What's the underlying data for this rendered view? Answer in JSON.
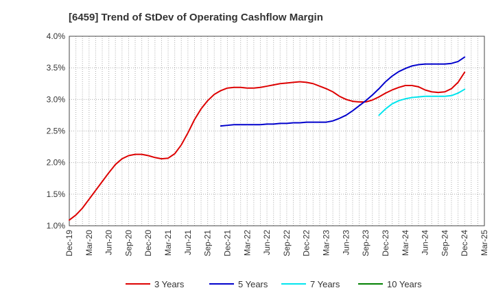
{
  "chart_data": {
    "type": "line",
    "title": "[6459]  Trend of StDev of Operating Cashflow Margin",
    "xlabel": "",
    "ylabel": "",
    "y_unit": "%",
    "ylim": [
      1.0,
      4.0
    ],
    "y_ticks": [
      1.0,
      1.5,
      2.0,
      2.5,
      3.0,
      3.5,
      4.0
    ],
    "y_tick_labels": [
      "1.0%",
      "1.5%",
      "2.0%",
      "2.5%",
      "3.0%",
      "3.5%",
      "4.0%"
    ],
    "x_ticks": [
      "Dec-19",
      "Mar-20",
      "Jun-20",
      "Sep-20",
      "Dec-20",
      "Mar-21",
      "Jun-21",
      "Sep-21",
      "Dec-21",
      "Mar-22",
      "Jun-22",
      "Sep-22",
      "Dec-22",
      "Mar-23",
      "Jun-23",
      "Sep-23",
      "Dec-23",
      "Mar-24",
      "Jun-24",
      "Sep-24",
      "Dec-24",
      "Mar-25"
    ],
    "grid": true,
    "legend_position": "bottom",
    "series": [
      {
        "name": "3 Years",
        "color": "#dd0000",
        "points": [
          [
            "Dec-19",
            1.09
          ],
          [
            "Jan-20",
            1.17
          ],
          [
            "Feb-20",
            1.28
          ],
          [
            "Mar-20",
            1.42
          ],
          [
            "Apr-20",
            1.56
          ],
          [
            "May-20",
            1.7
          ],
          [
            "Jun-20",
            1.84
          ],
          [
            "Jul-20",
            1.97
          ],
          [
            "Aug-20",
            2.06
          ],
          [
            "Sep-20",
            2.11
          ],
          [
            "Oct-20",
            2.13
          ],
          [
            "Nov-20",
            2.13
          ],
          [
            "Dec-20",
            2.11
          ],
          [
            "Jan-21",
            2.08
          ],
          [
            "Feb-21",
            2.06
          ],
          [
            "Mar-21",
            2.07
          ],
          [
            "Apr-21",
            2.14
          ],
          [
            "May-21",
            2.28
          ],
          [
            "Jun-21",
            2.47
          ],
          [
            "Jul-21",
            2.68
          ],
          [
            "Aug-21",
            2.85
          ],
          [
            "Sep-21",
            2.98
          ],
          [
            "Oct-21",
            3.08
          ],
          [
            "Nov-21",
            3.14
          ],
          [
            "Dec-21",
            3.18
          ],
          [
            "Jan-22",
            3.19
          ],
          [
            "Feb-22",
            3.19
          ],
          [
            "Mar-22",
            3.18
          ],
          [
            "Apr-22",
            3.18
          ],
          [
            "May-22",
            3.19
          ],
          [
            "Jun-22",
            3.21
          ],
          [
            "Jul-22",
            3.23
          ],
          [
            "Aug-22",
            3.25
          ],
          [
            "Sep-22",
            3.26
          ],
          [
            "Oct-22",
            3.27
          ],
          [
            "Nov-22",
            3.28
          ],
          [
            "Dec-22",
            3.27
          ],
          [
            "Jan-23",
            3.25
          ],
          [
            "Feb-23",
            3.21
          ],
          [
            "Mar-23",
            3.17
          ],
          [
            "Apr-23",
            3.12
          ],
          [
            "May-23",
            3.05
          ],
          [
            "Jun-23",
            3.0
          ],
          [
            "Jul-23",
            2.97
          ],
          [
            "Aug-23",
            2.96
          ],
          [
            "Sep-23",
            2.96
          ],
          [
            "Oct-23",
            2.99
          ],
          [
            "Nov-23",
            3.04
          ],
          [
            "Dec-23",
            3.1
          ],
          [
            "Jan-24",
            3.15
          ],
          [
            "Feb-24",
            3.19
          ],
          [
            "Mar-24",
            3.22
          ],
          [
            "Apr-24",
            3.22
          ],
          [
            "May-24",
            3.2
          ],
          [
            "Jun-24",
            3.15
          ],
          [
            "Jul-24",
            3.12
          ],
          [
            "Aug-24",
            3.11
          ],
          [
            "Sep-24",
            3.12
          ],
          [
            "Oct-24",
            3.17
          ],
          [
            "Nov-24",
            3.27
          ],
          [
            "Dec-24",
            3.43
          ]
        ]
      },
      {
        "name": "5 Years",
        "color": "#0000cc",
        "points": [
          [
            "Nov-21",
            2.58
          ],
          [
            "Dec-21",
            2.59
          ],
          [
            "Jan-22",
            2.6
          ],
          [
            "Feb-22",
            2.6
          ],
          [
            "Mar-22",
            2.6
          ],
          [
            "Apr-22",
            2.6
          ],
          [
            "May-22",
            2.6
          ],
          [
            "Jun-22",
            2.61
          ],
          [
            "Jul-22",
            2.61
          ],
          [
            "Aug-22",
            2.62
          ],
          [
            "Sep-22",
            2.62
          ],
          [
            "Oct-22",
            2.63
          ],
          [
            "Nov-22",
            2.63
          ],
          [
            "Dec-22",
            2.64
          ],
          [
            "Jan-23",
            2.64
          ],
          [
            "Feb-23",
            2.64
          ],
          [
            "Mar-23",
            2.64
          ],
          [
            "Apr-23",
            2.66
          ],
          [
            "May-23",
            2.7
          ],
          [
            "Jun-23",
            2.75
          ],
          [
            "Jul-23",
            2.82
          ],
          [
            "Aug-23",
            2.9
          ],
          [
            "Sep-23",
            2.98
          ],
          [
            "Oct-23",
            3.07
          ],
          [
            "Nov-23",
            3.17
          ],
          [
            "Dec-23",
            3.28
          ],
          [
            "Jan-24",
            3.37
          ],
          [
            "Feb-24",
            3.44
          ],
          [
            "Mar-24",
            3.49
          ],
          [
            "Apr-24",
            3.53
          ],
          [
            "May-24",
            3.55
          ],
          [
            "Jun-24",
            3.56
          ],
          [
            "Jul-24",
            3.56
          ],
          [
            "Aug-24",
            3.56
          ],
          [
            "Sep-24",
            3.56
          ],
          [
            "Oct-24",
            3.57
          ],
          [
            "Nov-24",
            3.6
          ],
          [
            "Dec-24",
            3.67
          ]
        ]
      },
      {
        "name": "7 Years",
        "color": "#00e5ee",
        "points": [
          [
            "Nov-23",
            2.75
          ],
          [
            "Dec-23",
            2.85
          ],
          [
            "Jan-24",
            2.93
          ],
          [
            "Feb-24",
            2.98
          ],
          [
            "Mar-24",
            3.01
          ],
          [
            "Apr-24",
            3.03
          ],
          [
            "May-24",
            3.04
          ],
          [
            "Jun-24",
            3.05
          ],
          [
            "Jul-24",
            3.05
          ],
          [
            "Aug-24",
            3.05
          ],
          [
            "Sep-24",
            3.05
          ],
          [
            "Oct-24",
            3.06
          ],
          [
            "Nov-24",
            3.1
          ],
          [
            "Dec-24",
            3.16
          ]
        ]
      },
      {
        "name": "10 Years",
        "color": "#008000",
        "points": []
      }
    ]
  }
}
